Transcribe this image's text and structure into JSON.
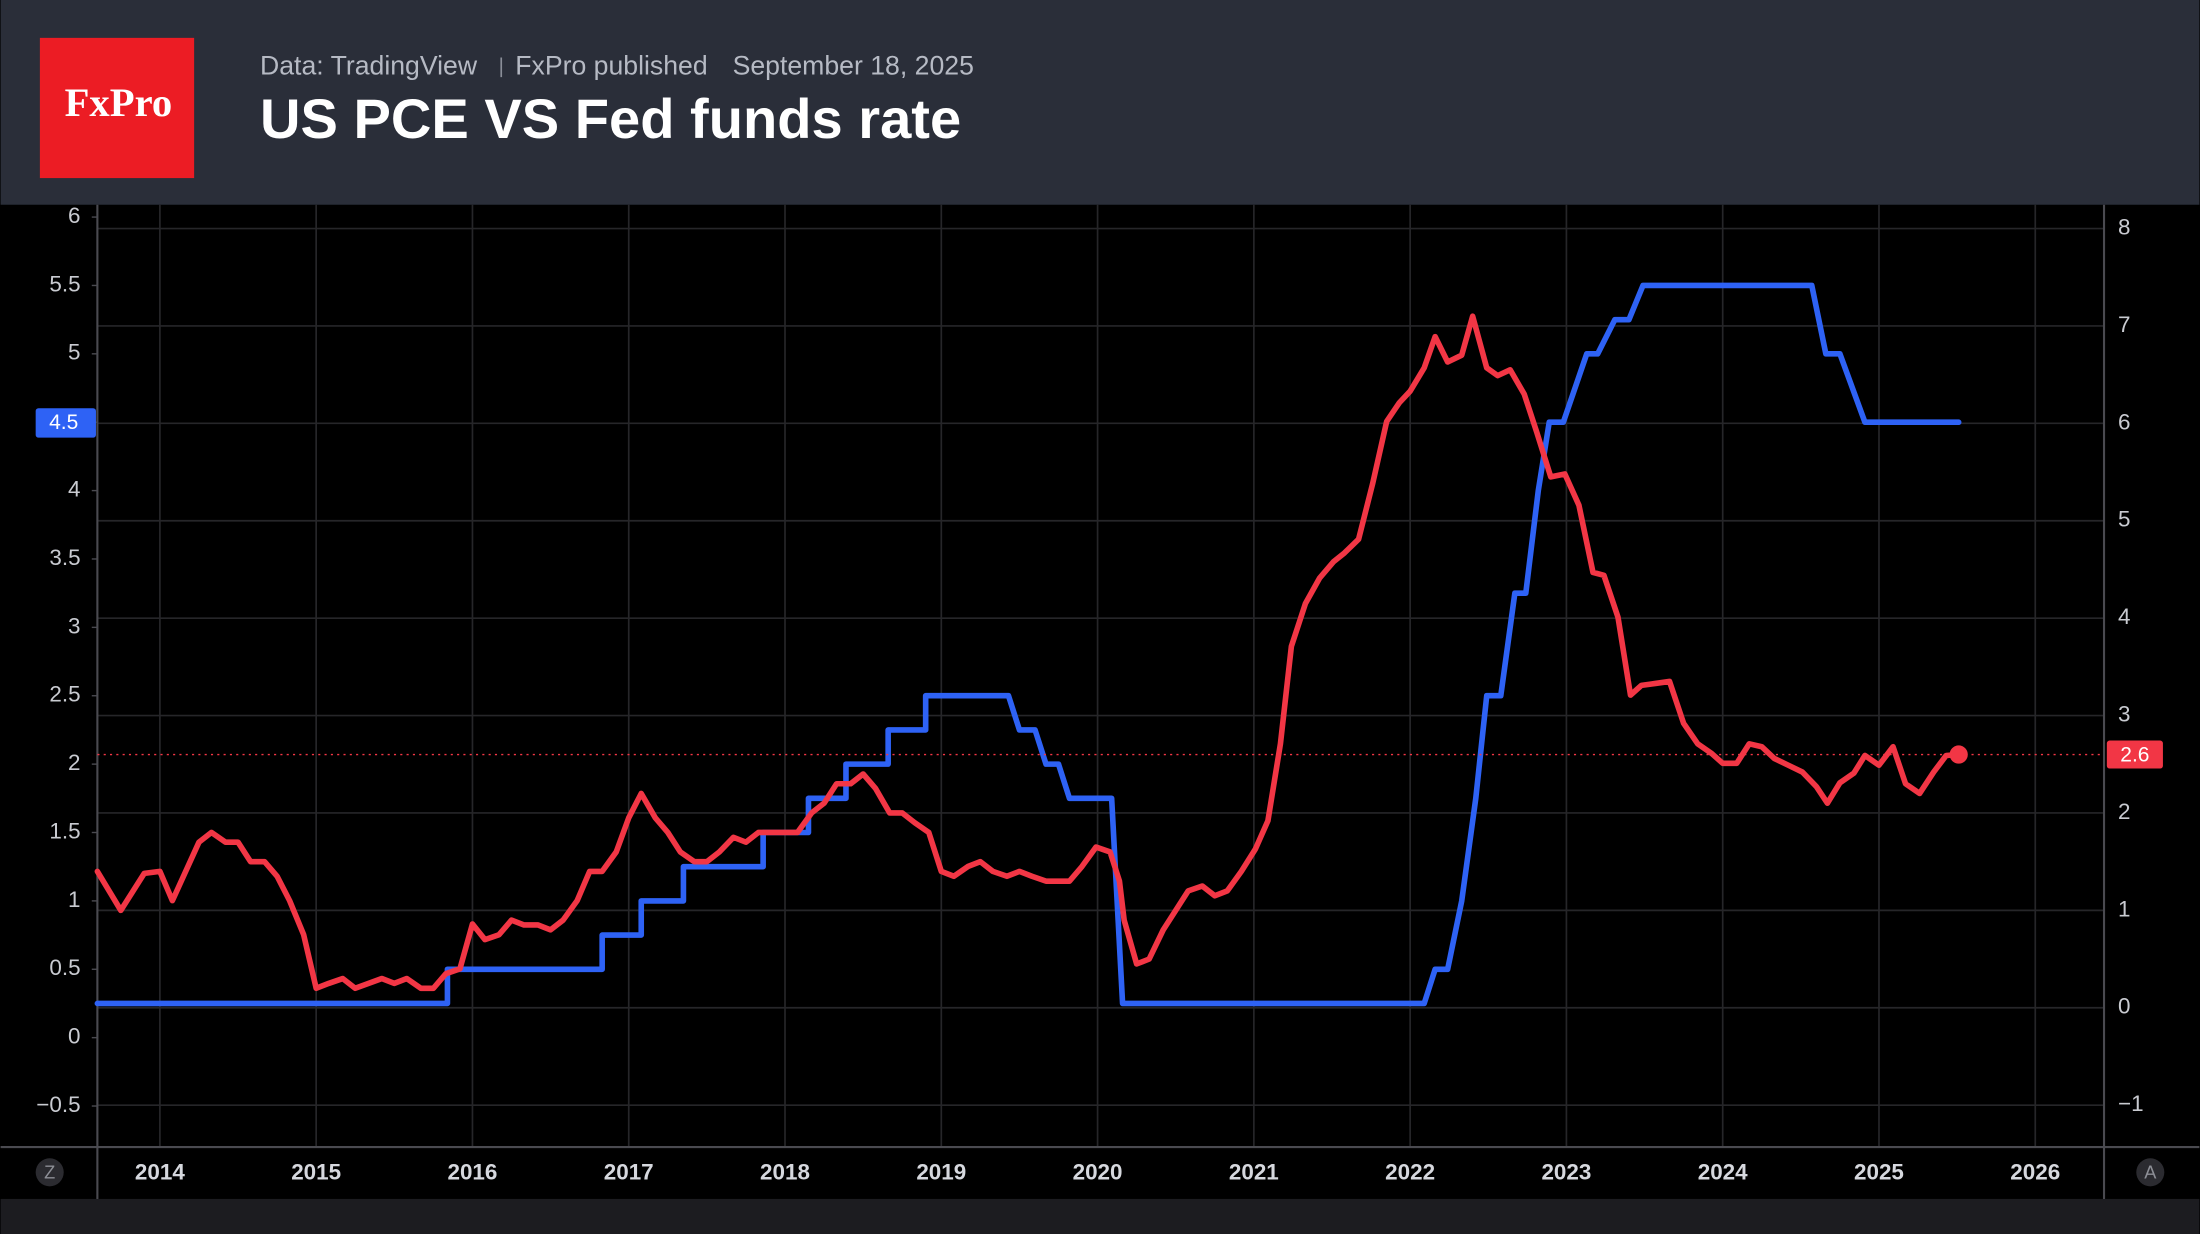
{
  "header": {
    "logo": "FxPro",
    "source": "Data: TradingView",
    "publisher": "FxPro published",
    "date": "September 18, 2025"
  },
  "controls": {
    "left": "Z",
    "right": "A"
  },
  "chart_data": {
    "type": "line",
    "title": "US PCE VS Fed funds rate",
    "grid": true,
    "xlim": [
      2013.6,
      2026.44
    ],
    "xticks": [
      2014,
      2015,
      2016,
      2017,
      2018,
      2019,
      2020,
      2021,
      2022,
      2023,
      2024,
      2025,
      2026
    ],
    "ylim": [
      -0.8,
      6.08
    ],
    "yticks": [
      6,
      5.5,
      5,
      4.5,
      4,
      3.5,
      3,
      2.5,
      2,
      1.5,
      1,
      0.5,
      0,
      {
        "value": -0.5,
        "label": "−0.5"
      }
    ],
    "y2lim": [
      -1.43,
      8.23
    ],
    "y2ticks": [
      8,
      7,
      6,
      5,
      4,
      3,
      2,
      1,
      0,
      {
        "value": -1,
        "label": "−1"
      }
    ],
    "series": [
      {
        "color": "#2e62f5",
        "axis": "y",
        "x": [
          2013.6,
          2015.84,
          2015.84,
          2016.83,
          2016.83,
          2017.08,
          2017.08,
          2017.35,
          2017.35,
          2017.86,
          2017.86,
          2018.15,
          2018.15,
          2018.39,
          2018.39,
          2018.66,
          2018.66,
          2018.9,
          2018.9,
          2019.43,
          2019.5,
          2019.6,
          2019.67,
          2019.75,
          2019.82,
          2020.09,
          2020.16,
          2022.09,
          2022.16,
          2022.24,
          2022.33,
          2022.42,
          2022.49,
          2022.58,
          2022.67,
          2022.74,
          2022.82,
          2022.89,
          2022.98,
          2023.13,
          2023.2,
          2023.31,
          2023.4,
          2023.49,
          2024.57,
          2024.66,
          2024.75,
          2024.91,
          2025.51
        ],
        "values": [
          0.25,
          0.25,
          0.5,
          0.5,
          0.75,
          0.75,
          1.0,
          1.0,
          1.25,
          1.25,
          1.5,
          1.5,
          1.75,
          1.75,
          2.0,
          2.0,
          2.25,
          2.25,
          2.5,
          2.5,
          2.25,
          2.25,
          2.0,
          2.0,
          1.75,
          1.75,
          0.25,
          0.25,
          0.5,
          0.5,
          1.0,
          1.75,
          2.5,
          2.5,
          3.25,
          3.25,
          4.0,
          4.5,
          4.5,
          5.0,
          5.0,
          5.25,
          5.25,
          5.5,
          5.5,
          5.0,
          5.0,
          4.5,
          4.5
        ]
      },
      {
        "color": "#f23645",
        "axis": "y2",
        "x": [
          2013.6,
          2013.75,
          2013.9,
          2014.0,
          2014.08,
          2014.25,
          2014.33,
          2014.42,
          2014.5,
          2014.58,
          2014.67,
          2014.75,
          2014.83,
          2014.92,
          2015.0,
          2015.08,
          2015.17,
          2015.25,
          2015.42,
          2015.5,
          2015.58,
          2015.67,
          2015.75,
          2015.83,
          2015.92,
          2016.0,
          2016.08,
          2016.17,
          2016.25,
          2016.33,
          2016.42,
          2016.5,
          2016.58,
          2016.67,
          2016.75,
          2016.83,
          2016.92,
          2017.0,
          2017.08,
          2017.17,
          2017.25,
          2017.33,
          2017.42,
          2017.5,
          2017.58,
          2017.67,
          2017.75,
          2017.83,
          2017.92,
          2018.0,
          2018.08,
          2018.17,
          2018.25,
          2018.33,
          2018.42,
          2018.5,
          2018.58,
          2018.67,
          2018.75,
          2018.83,
          2018.92,
          2019.0,
          2019.08,
          2019.17,
          2019.25,
          2019.33,
          2019.42,
          2019.5,
          2019.58,
          2019.67,
          2019.82,
          2019.9,
          2019.99,
          2020.08,
          2020.14,
          2020.17,
          2020.25,
          2020.33,
          2020.42,
          2020.5,
          2020.58,
          2020.67,
          2020.75,
          2020.83,
          2020.92,
          2021.01,
          2021.09,
          2021.17,
          2021.24,
          2021.33,
          2021.42,
          2021.51,
          2021.58,
          2021.67,
          2021.76,
          2021.85,
          2021.93,
          2022.0,
          2022.09,
          2022.16,
          2022.24,
          2022.33,
          2022.4,
          2022.49,
          2022.56,
          2022.64,
          2022.73,
          2022.81,
          2022.9,
          2022.99,
          2023.08,
          2023.17,
          2023.24,
          2023.33,
          2023.41,
          2023.48,
          2023.57,
          2023.66,
          2023.75,
          2023.84,
          2023.93,
          2024.0,
          2024.09,
          2024.17,
          2024.25,
          2024.33,
          2024.42,
          2024.51,
          2024.6,
          2024.67,
          2024.75,
          2024.84,
          2024.91,
          2025.0,
          2025.09,
          2025.17,
          2025.26,
          2025.35,
          2025.43,
          2025.51
        ],
        "values": [
          1.4,
          1.0,
          1.38,
          1.4,
          1.1,
          1.7,
          1.8,
          1.7,
          1.7,
          1.5,
          1.5,
          1.35,
          1.1,
          0.75,
          0.2,
          0.25,
          0.3,
          0.2,
          0.3,
          0.25,
          0.3,
          0.2,
          0.2,
          0.35,
          0.4,
          0.86,
          0.7,
          0.75,
          0.9,
          0.85,
          0.85,
          0.8,
          0.9,
          1.1,
          1.4,
          1.4,
          1.6,
          1.95,
          2.2,
          1.95,
          1.8,
          1.6,
          1.5,
          1.5,
          1.6,
          1.75,
          1.7,
          1.8,
          1.8,
          1.8,
          1.8,
          2.0,
          2.1,
          2.3,
          2.3,
          2.4,
          2.25,
          2.0,
          2.0,
          1.9,
          1.8,
          1.4,
          1.35,
          1.45,
          1.5,
          1.4,
          1.35,
          1.4,
          1.35,
          1.3,
          1.3,
          1.45,
          1.65,
          1.6,
          1.3,
          0.9,
          0.45,
          0.5,
          0.8,
          1.0,
          1.2,
          1.25,
          1.15,
          1.2,
          1.4,
          1.63,
          1.92,
          2.71,
          3.71,
          4.15,
          4.41,
          4.58,
          4.67,
          4.81,
          5.38,
          6.02,
          6.21,
          6.33,
          6.57,
          6.89,
          6.63,
          6.7,
          7.1,
          6.57,
          6.49,
          6.55,
          6.3,
          5.91,
          5.45,
          5.48,
          5.16,
          4.47,
          4.44,
          4.01,
          3.21,
          3.31,
          3.33,
          3.35,
          2.92,
          2.71,
          2.61,
          2.51,
          2.51,
          2.71,
          2.68,
          2.56,
          2.49,
          2.42,
          2.27,
          2.1,
          2.31,
          2.41,
          2.59,
          2.49,
          2.68,
          2.3,
          2.2,
          2.42,
          2.59,
          2.6
        ]
      }
    ]
  }
}
